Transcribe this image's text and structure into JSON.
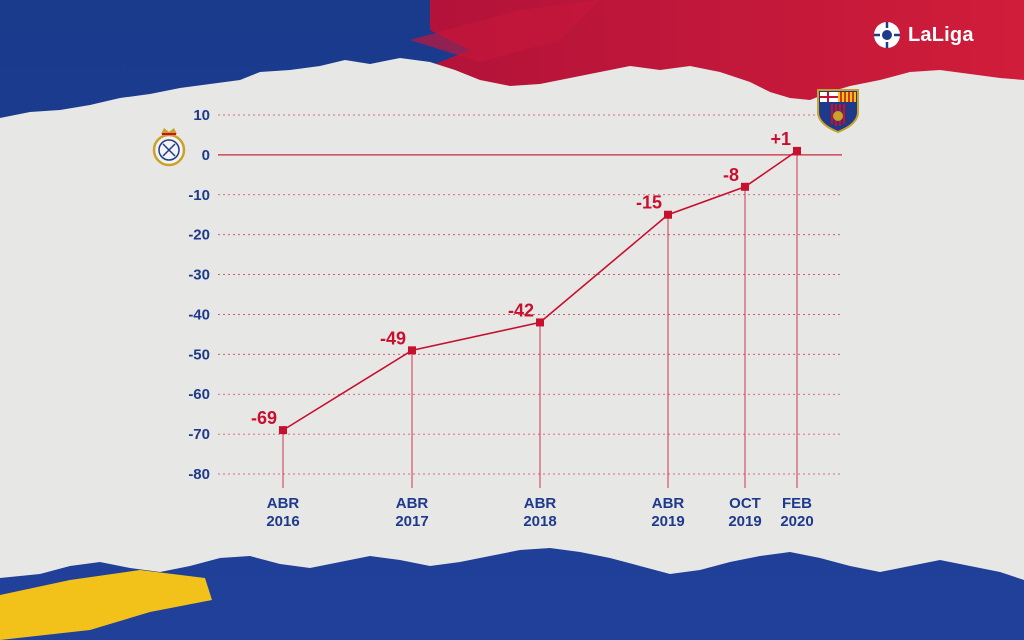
{
  "brand": {
    "name": "LaLiga"
  },
  "clubs": {
    "top": "barcelona-crest",
    "bottom": "real-madrid-crest"
  },
  "colors": {
    "accent": "#c8102e",
    "axis_text": "#1e3a8a",
    "grid": "#c8102e",
    "paper": "#e6e6e6",
    "blue": "#1e3a8a",
    "red": "#c8102e",
    "yellow": "#f5c518"
  },
  "chart_data": {
    "type": "line",
    "categories": [
      {
        "line1": "ABR",
        "line2": "2016"
      },
      {
        "line1": "ABR",
        "line2": "2017"
      },
      {
        "line1": "ABR",
        "line2": "2018"
      },
      {
        "line1": "ABR",
        "line2": "2019"
      },
      {
        "line1": "OCT",
        "line2": "2019"
      },
      {
        "line1": "FEB",
        "line2": "2020"
      }
    ],
    "values": [
      -69,
      -49,
      -42,
      -15,
      -8,
      1
    ],
    "data_labels": [
      "-69",
      "-49",
      "-42",
      "-15",
      "-8",
      "+1"
    ],
    "yticks": [
      10,
      0,
      -10,
      -20,
      -30,
      -40,
      -50,
      -60,
      -70,
      -80
    ],
    "ylim": [
      -80,
      10
    ],
    "grid": true
  }
}
